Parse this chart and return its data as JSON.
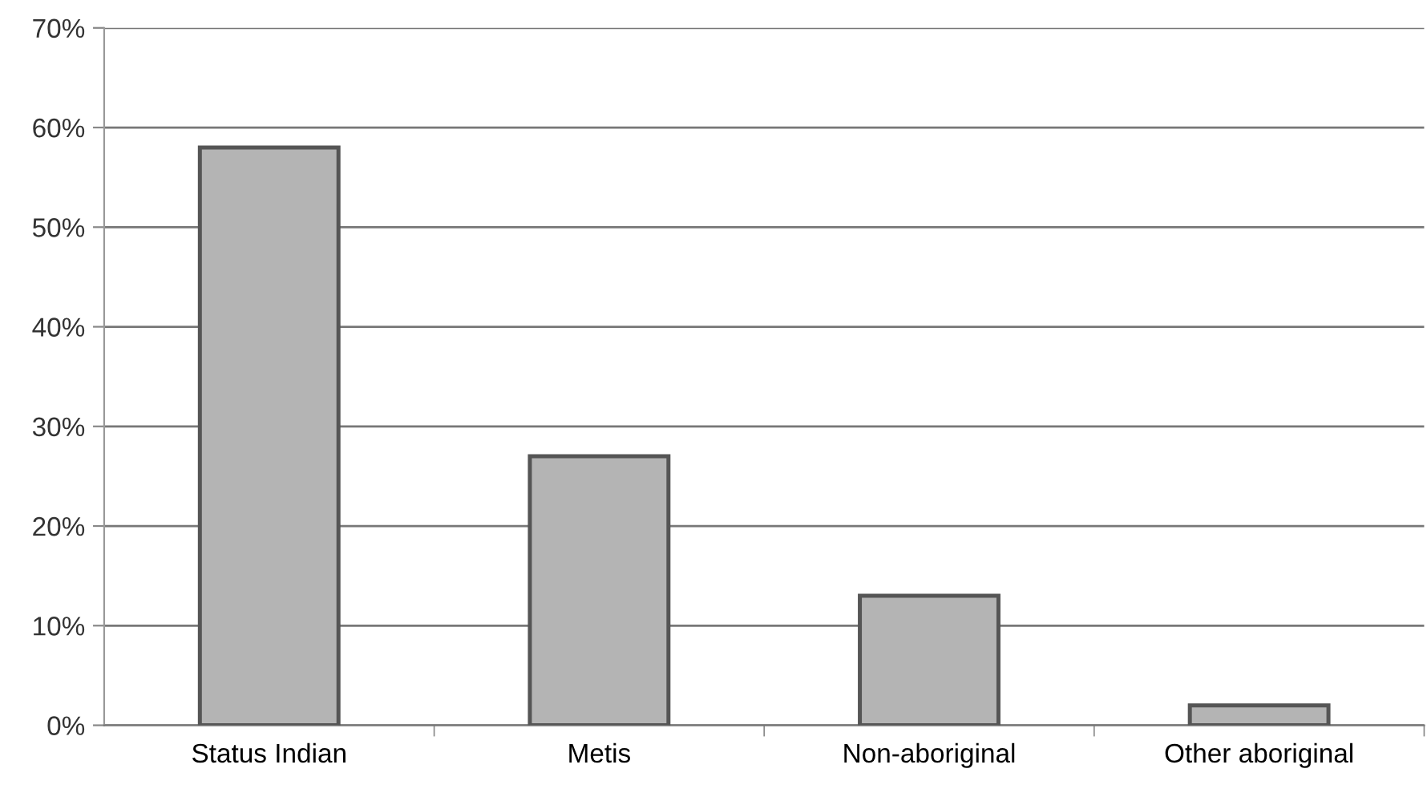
{
  "chart_data": {
    "type": "bar",
    "categories": [
      "Status Indian",
      "Metis",
      "Non-aboriginal",
      "Other aboriginal"
    ],
    "values": [
      58,
      27,
      13,
      2
    ],
    "color": "#b4b4b4",
    "ylim": [
      0,
      70
    ],
    "yticks": [
      {
        "value": 0,
        "label": "0%"
      },
      {
        "value": 10,
        "label": "10%"
      },
      {
        "value": 20,
        "label": "20%"
      },
      {
        "value": 30,
        "label": "30%"
      },
      {
        "value": 40,
        "label": "40%"
      },
      {
        "value": 50,
        "label": "50%"
      },
      {
        "value": 60,
        "label": "60%"
      },
      {
        "value": 70,
        "label": "70%"
      }
    ],
    "grid": "y"
  }
}
